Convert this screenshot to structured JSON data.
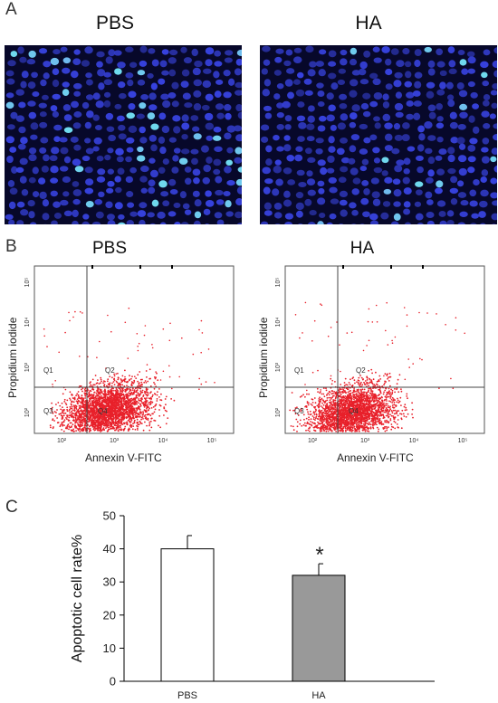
{
  "panel_a": {
    "letter": "A",
    "left_title": "PBS",
    "right_title": "HA"
  },
  "panel_b": {
    "letter": "B",
    "left": {
      "title": "PBS",
      "ylabel": "Propidium iodide",
      "xlabel": "Annexin V-FITC",
      "quadrants": [
        "Q1",
        "Q2",
        "Q3",
        "Q4"
      ],
      "xticks": [
        "10²",
        "10³",
        "10⁴",
        "10⁵"
      ],
      "yticks": [
        "10²",
        "10³",
        "10⁴",
        "10⁵"
      ]
    },
    "right": {
      "title": "HA",
      "ylabel": "Propidium iodide",
      "xlabel": "Annexin V-FITC",
      "quadrants": [
        "Q1",
        "Q2",
        "Q3",
        "Q4"
      ],
      "xticks": [
        "10²",
        "10³",
        "10⁴",
        "10⁵"
      ],
      "yticks": [
        "10²",
        "10³",
        "10⁴",
        "10⁵"
      ]
    },
    "dot_color": "#e8202a"
  },
  "panel_c": {
    "letter": "C",
    "significance_marker": "*"
  },
  "chart_data": {
    "type": "bar",
    "categories": [
      "PBS",
      "HA"
    ],
    "values": [
      40,
      32
    ],
    "errors": [
      4,
      3.5
    ],
    "bar_colors": [
      "#ffffff",
      "#999999"
    ],
    "ylabel": "Apoptotic cell rate%",
    "xlabel": "",
    "ylim": [
      0,
      50
    ],
    "yticks": [
      0,
      10,
      20,
      30,
      40,
      50
    ],
    "grid": false
  }
}
